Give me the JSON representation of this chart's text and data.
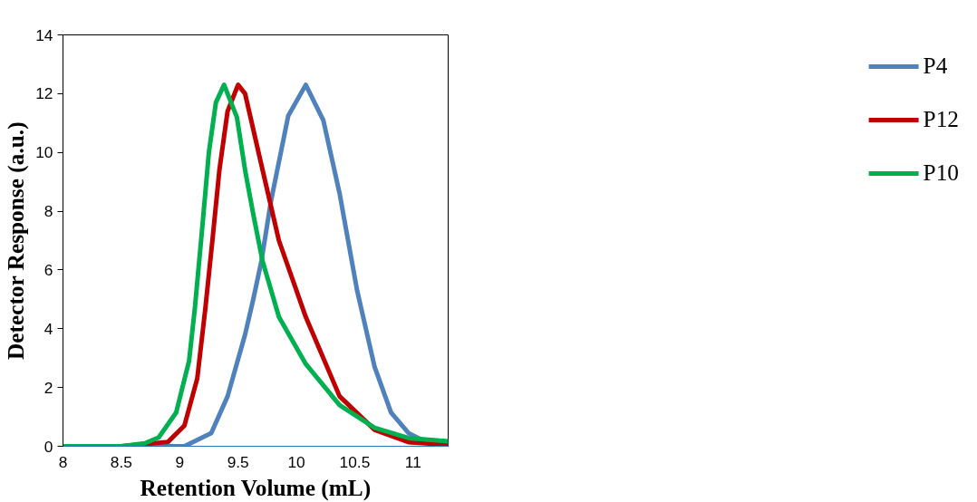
{
  "chart_data": {
    "type": "line",
    "xlabel": "Retention Volume (mL)",
    "ylabel": "Detector Response (a.u.)",
    "xlim": [
      8,
      11.3
    ],
    "ylim": [
      0,
      14
    ],
    "xticks": [
      8,
      8.5,
      9,
      9.5,
      10,
      10.5,
      11
    ],
    "yticks": [
      0,
      2,
      4,
      6,
      8,
      10,
      12,
      14
    ],
    "grid": false,
    "legend": "right",
    "marker": "none",
    "line_style": "solid",
    "series": [
      {
        "name": "P4",
        "color": "#4f81bd",
        "x": [
          8,
          8.5,
          9.04,
          9.27,
          9.41,
          9.56,
          9.63,
          9.7,
          9.78,
          9.93,
          10.08,
          10.23,
          10.37,
          10.52,
          10.67,
          10.81,
          10.96,
          11.11,
          11.3
        ],
        "values": [
          0,
          0,
          0,
          0.45,
          1.7,
          3.8,
          5.0,
          6.3,
          8.3,
          11.25,
          12.3,
          11.1,
          8.6,
          5.3,
          2.7,
          1.15,
          0.45,
          0.15,
          0.05
        ]
      },
      {
        "name": "P12",
        "color": "#c00000",
        "x": [
          8,
          8.5,
          8.9,
          9.04,
          9.15,
          9.22,
          9.28,
          9.34,
          9.41,
          9.5,
          9.56,
          9.71,
          9.85,
          10.08,
          10.37,
          10.67,
          10.96,
          11.3
        ],
        "values": [
          0,
          0,
          0.15,
          0.7,
          2.3,
          4.7,
          7.0,
          9.4,
          11.4,
          12.3,
          12.0,
          9.4,
          7.0,
          4.4,
          1.7,
          0.56,
          0.14,
          0.05
        ]
      },
      {
        "name": "P10",
        "color": "#00b050",
        "x": [
          8,
          8.5,
          8.7,
          8.82,
          8.97,
          9.08,
          9.13,
          9.19,
          9.25,
          9.31,
          9.38,
          9.49,
          9.56,
          9.63,
          9.71,
          9.85,
          10.08,
          10.37,
          10.67,
          10.96,
          11.3
        ],
        "values": [
          0,
          0,
          0.1,
          0.3,
          1.15,
          2.9,
          4.7,
          7.3,
          10.0,
          11.7,
          12.3,
          11.2,
          9.4,
          7.9,
          6.3,
          4.4,
          2.8,
          1.4,
          0.63,
          0.28,
          0.17
        ]
      }
    ]
  }
}
